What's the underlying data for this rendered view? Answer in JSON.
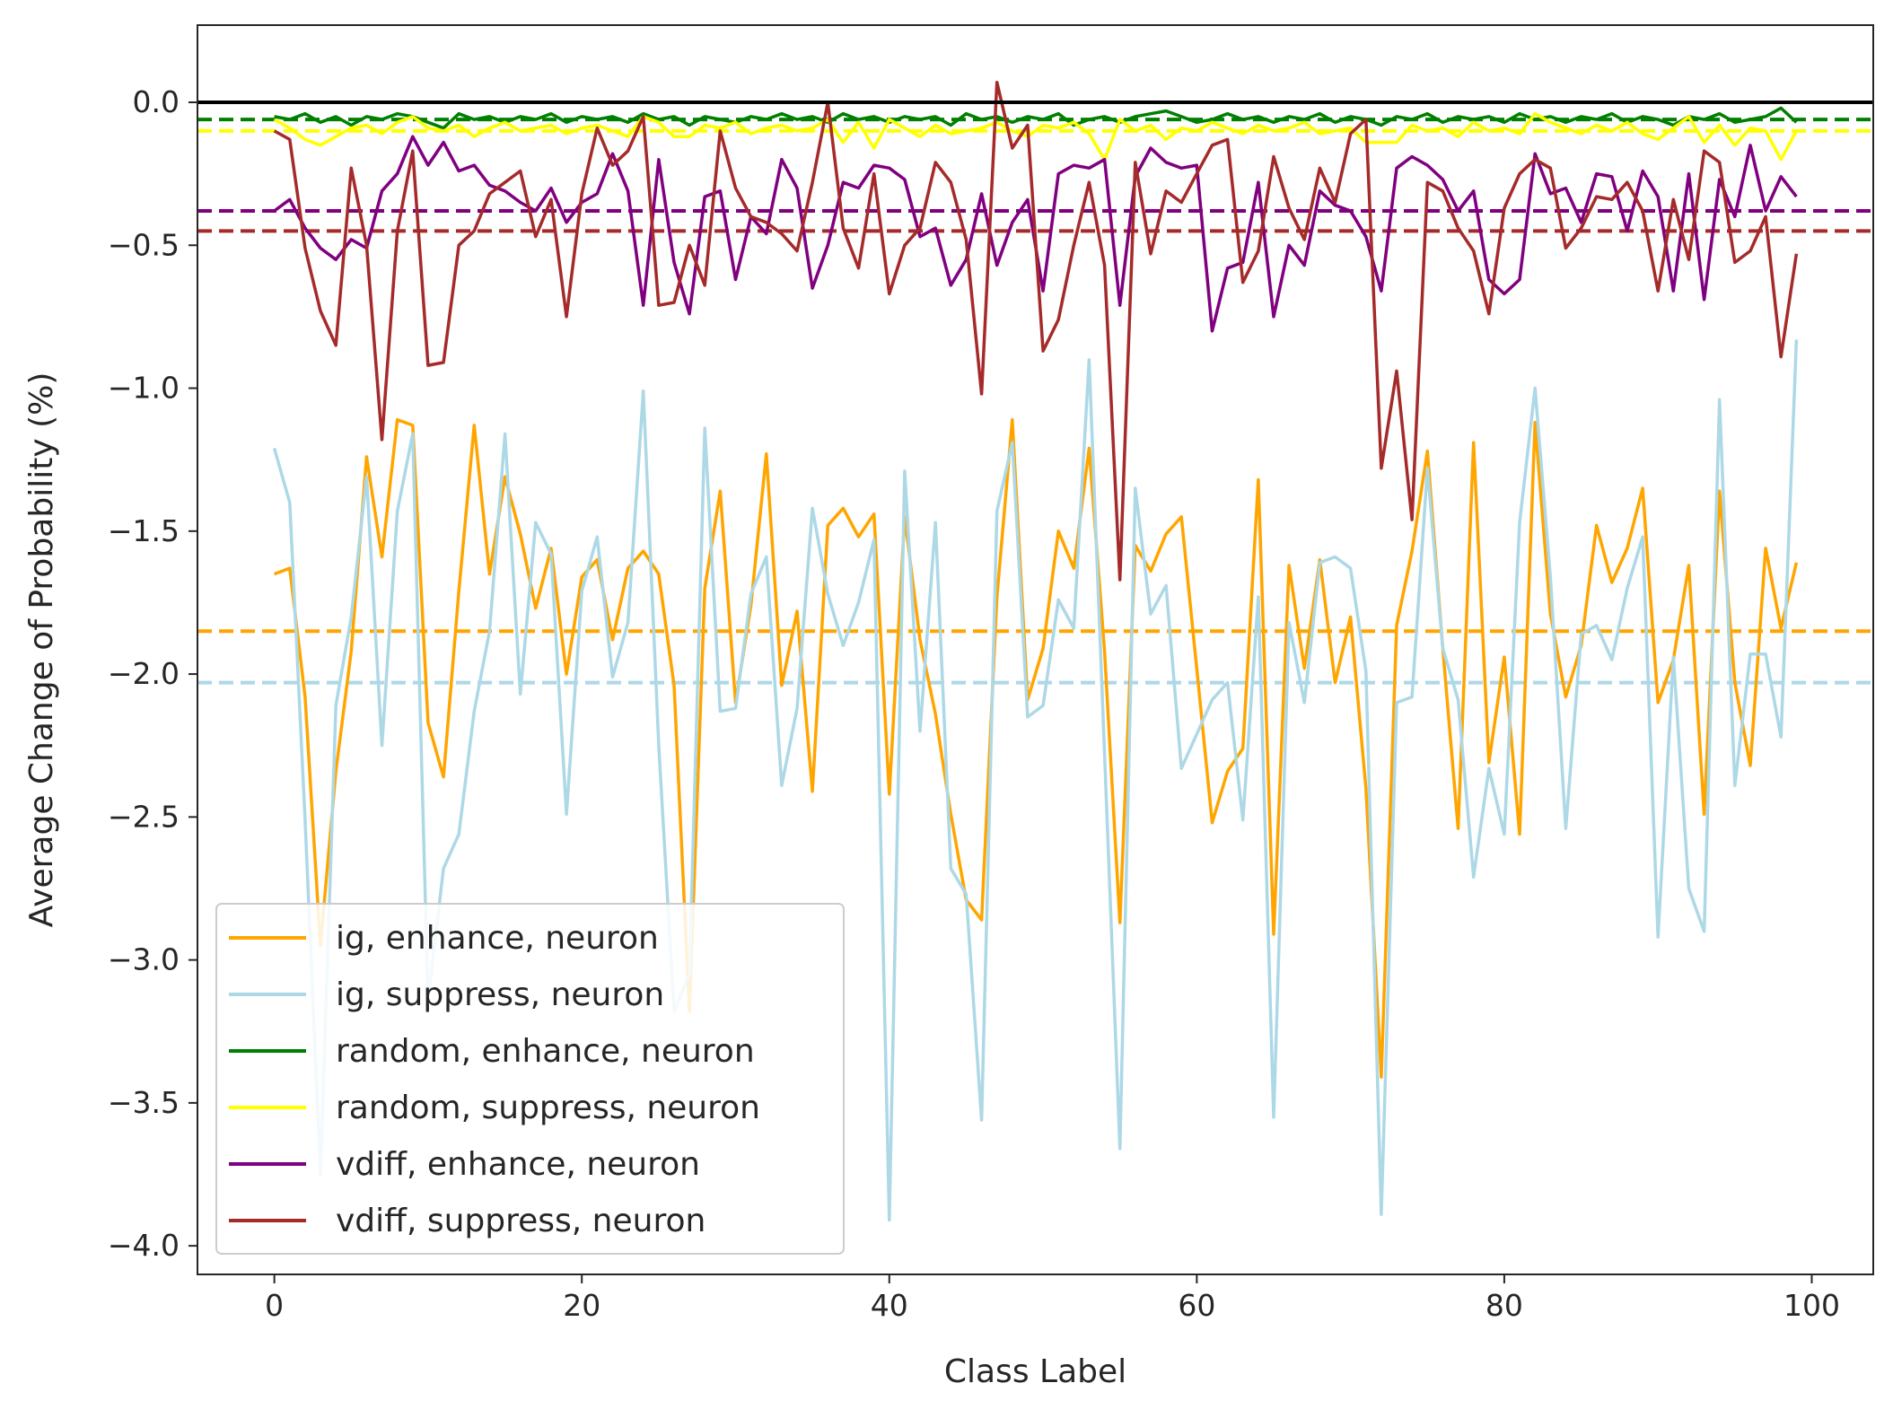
{
  "chart_data": {
    "type": "line",
    "title": "",
    "xlabel": "Class Label",
    "ylabel": "Average Change of Probability (%)",
    "xlim": [
      -5,
      104
    ],
    "ylim": [
      -4.1,
      0.27
    ],
    "xticks": [
      0,
      20,
      40,
      60,
      80,
      100
    ],
    "xtick_labels": [
      "0",
      "20",
      "40",
      "60",
      "80",
      "100"
    ],
    "yticks": [
      0.0,
      -0.5,
      -1.0,
      -1.5,
      -2.0,
      -2.5,
      -3.0,
      -3.5,
      -4.0
    ],
    "ytick_labels": [
      "0.0",
      "−0.5",
      "−1.0",
      "−1.5",
      "−2.0",
      "−2.5",
      "−3.0",
      "−3.5",
      "−4.0"
    ],
    "grid": false,
    "legend_position": "lower-left",
    "reference_line": {
      "y": 0.0,
      "color": "#000000"
    },
    "series": [
      {
        "name": "ig, enhance, neuron",
        "color": "#ffa500",
        "mean": -1.85,
        "values": [
          -1.65,
          -1.63,
          -2.08,
          -2.95,
          -2.34,
          -1.92,
          -1.24,
          -1.59,
          -1.11,
          -1.13,
          -2.17,
          -2.36,
          -1.71,
          -1.13,
          -1.65,
          -1.31,
          -1.51,
          -1.77,
          -1.56,
          -2.0,
          -1.66,
          -1.6,
          -1.88,
          -1.63,
          -1.57,
          -1.65,
          -2.04,
          -3.18,
          -1.7,
          -1.36,
          -2.1,
          -1.76,
          -1.23,
          -2.04,
          -1.78,
          -2.41,
          -1.48,
          -1.42,
          -1.52,
          -1.44,
          -2.42,
          -1.45,
          -1.88,
          -2.14,
          -2.49,
          -2.79,
          -2.86,
          -1.73,
          -1.11,
          -2.09,
          -1.91,
          -1.5,
          -1.63,
          -1.21,
          -1.92,
          -2.87,
          -1.55,
          -1.64,
          -1.51,
          -1.45,
          -1.98,
          -2.52,
          -2.34,
          -2.26,
          -1.32,
          -2.91,
          -1.62,
          -1.98,
          -1.6,
          -2.03,
          -1.8,
          -2.4,
          -3.41,
          -1.83,
          -1.57,
          -1.22,
          -1.91,
          -2.54,
          -1.19,
          -2.31,
          -1.94,
          -2.56,
          -1.12,
          -1.79,
          -2.08,
          -1.9,
          -1.48,
          -1.68,
          -1.56,
          -1.35,
          -2.1,
          -1.95,
          -1.62,
          -2.49,
          -1.36,
          -2.03,
          -2.32,
          -1.56,
          -1.84,
          -1.61
        ]
      },
      {
        "name": "ig, suppress, neuron",
        "color": "#add8e6",
        "mean": -2.03,
        "values": [
          -1.21,
          -1.4,
          -2.51,
          -3.75,
          -2.11,
          -1.8,
          -1.31,
          -2.25,
          -1.43,
          -1.16,
          -3.14,
          -2.68,
          -2.56,
          -2.13,
          -1.85,
          -1.16,
          -2.07,
          -1.47,
          -1.58,
          -2.49,
          -1.71,
          -1.52,
          -2.01,
          -1.82,
          -1.01,
          -2.25,
          -3.18,
          -3.05,
          -1.14,
          -2.13,
          -2.12,
          -1.72,
          -1.59,
          -2.39,
          -2.12,
          -1.42,
          -1.72,
          -1.9,
          -1.75,
          -1.53,
          -3.91,
          -1.29,
          -2.2,
          -1.47,
          -2.68,
          -2.77,
          -3.56,
          -1.43,
          -1.19,
          -2.15,
          -2.11,
          -1.74,
          -1.84,
          -0.9,
          -2.28,
          -3.66,
          -1.35,
          -1.79,
          -1.69,
          -2.33,
          -2.21,
          -2.09,
          -2.03,
          -2.51,
          -1.73,
          -3.55,
          -1.82,
          -2.1,
          -1.61,
          -1.59,
          -1.63,
          -1.99,
          -3.89,
          -2.1,
          -2.08,
          -1.28,
          -1.91,
          -2.09,
          -2.71,
          -2.33,
          -2.56,
          -1.47,
          -1.0,
          -1.66,
          -2.54,
          -1.86,
          -1.83,
          -1.95,
          -1.7,
          -1.52,
          -2.92,
          -1.94,
          -2.75,
          -2.9,
          -1.04,
          -2.39,
          -1.93,
          -1.93,
          -2.22,
          -0.83
        ]
      },
      {
        "name": "random, enhance, neuron",
        "color": "#008000",
        "mean": -0.06,
        "values": [
          -0.05,
          -0.06,
          -0.04,
          -0.07,
          -0.05,
          -0.08,
          -0.05,
          -0.06,
          -0.04,
          -0.05,
          -0.07,
          -0.09,
          -0.04,
          -0.06,
          -0.05,
          -0.07,
          -0.05,
          -0.06,
          -0.04,
          -0.07,
          -0.05,
          -0.06,
          -0.05,
          -0.07,
          -0.04,
          -0.06,
          -0.05,
          -0.08,
          -0.05,
          -0.06,
          -0.07,
          -0.05,
          -0.06,
          -0.04,
          -0.06,
          -0.05,
          -0.07,
          -0.04,
          -0.06,
          -0.05,
          -0.07,
          -0.05,
          -0.06,
          -0.05,
          -0.08,
          -0.04,
          -0.06,
          -0.05,
          -0.07,
          -0.05,
          -0.06,
          -0.04,
          -0.08,
          -0.06,
          -0.05,
          -0.07,
          -0.05,
          -0.04,
          -0.03,
          -0.05,
          -0.07,
          -0.06,
          -0.04,
          -0.06,
          -0.05,
          -0.07,
          -0.05,
          -0.06,
          -0.04,
          -0.07,
          -0.05,
          -0.06,
          -0.08,
          -0.05,
          -0.06,
          -0.04,
          -0.07,
          -0.05,
          -0.06,
          -0.05,
          -0.07,
          -0.04,
          -0.06,
          -0.05,
          -0.07,
          -0.05,
          -0.06,
          -0.04,
          -0.07,
          -0.05,
          -0.06,
          -0.08,
          -0.05,
          -0.06,
          -0.04,
          -0.07,
          -0.06,
          -0.05,
          -0.02,
          -0.07
        ]
      },
      {
        "name": "random, suppress, neuron",
        "color": "#ffff00",
        "mean": -0.1,
        "values": [
          -0.06,
          -0.09,
          -0.13,
          -0.15,
          -0.12,
          -0.09,
          -0.08,
          -0.11,
          -0.07,
          -0.05,
          -0.09,
          -0.1,
          -0.08,
          -0.12,
          -0.09,
          -0.07,
          -0.1,
          -0.09,
          -0.08,
          -0.11,
          -0.09,
          -0.08,
          -0.1,
          -0.12,
          -0.05,
          -0.07,
          -0.12,
          -0.12,
          -0.08,
          -0.09,
          -0.07,
          -0.11,
          -0.09,
          -0.08,
          -0.1,
          -0.09,
          -0.06,
          -0.14,
          -0.07,
          -0.16,
          -0.06,
          -0.09,
          -0.12,
          -0.08,
          -0.11,
          -0.1,
          -0.09,
          -0.07,
          -0.1,
          -0.12,
          -0.08,
          -0.09,
          -0.07,
          -0.11,
          -0.2,
          -0.06,
          -0.1,
          -0.08,
          -0.13,
          -0.09,
          -0.1,
          -0.07,
          -0.09,
          -0.11,
          -0.08,
          -0.1,
          -0.09,
          -0.07,
          -0.11,
          -0.1,
          -0.09,
          -0.14,
          -0.14,
          -0.14,
          -0.08,
          -0.1,
          -0.09,
          -0.12,
          -0.07,
          -0.1,
          -0.09,
          -0.11,
          -0.04,
          -0.07,
          -0.09,
          -0.11,
          -0.08,
          -0.1,
          -0.07,
          -0.11,
          -0.13,
          -0.09,
          -0.05,
          -0.14,
          -0.08,
          -0.15,
          -0.09,
          -0.1,
          -0.2,
          -0.1
        ]
      },
      {
        "name": "vdiff, enhance, neuron",
        "color": "#800080",
        "mean": -0.38,
        "values": [
          -0.38,
          -0.34,
          -0.44,
          -0.51,
          -0.55,
          -0.48,
          -0.51,
          -0.31,
          -0.25,
          -0.12,
          -0.22,
          -0.14,
          -0.24,
          -0.22,
          -0.29,
          -0.31,
          -0.35,
          -0.38,
          -0.3,
          -0.42,
          -0.35,
          -0.32,
          -0.18,
          -0.31,
          -0.71,
          -0.2,
          -0.56,
          -0.74,
          -0.33,
          -0.31,
          -0.62,
          -0.4,
          -0.46,
          -0.2,
          -0.3,
          -0.65,
          -0.5,
          -0.28,
          -0.3,
          -0.22,
          -0.23,
          -0.27,
          -0.47,
          -0.44,
          -0.64,
          -0.55,
          -0.32,
          -0.57,
          -0.42,
          -0.34,
          -0.66,
          -0.25,
          -0.22,
          -0.23,
          -0.2,
          -0.71,
          -0.26,
          -0.16,
          -0.21,
          -0.23,
          -0.22,
          -0.8,
          -0.58,
          -0.56,
          -0.28,
          -0.75,
          -0.5,
          -0.57,
          -0.31,
          -0.36,
          -0.38,
          -0.47,
          -0.66,
          -0.23,
          -0.19,
          -0.22,
          -0.27,
          -0.38,
          -0.31,
          -0.62,
          -0.67,
          -0.62,
          -0.18,
          -0.32,
          -0.3,
          -0.42,
          -0.25,
          -0.26,
          -0.45,
          -0.24,
          -0.33,
          -0.66,
          -0.25,
          -0.69,
          -0.27,
          -0.4,
          -0.15,
          -0.38,
          -0.26,
          -0.33
        ]
      },
      {
        "name": "vdiff, suppress, neuron",
        "color": "#a52a2a",
        "mean": -0.45,
        "values": [
          -0.1,
          -0.13,
          -0.51,
          -0.73,
          -0.85,
          -0.23,
          -0.5,
          -1.18,
          -0.45,
          -0.17,
          -0.92,
          -0.91,
          -0.5,
          -0.45,
          -0.32,
          -0.28,
          -0.24,
          -0.47,
          -0.34,
          -0.75,
          -0.32,
          -0.09,
          -0.22,
          -0.17,
          -0.05,
          -0.71,
          -0.7,
          -0.5,
          -0.64,
          -0.1,
          -0.3,
          -0.4,
          -0.42,
          -0.46,
          -0.52,
          -0.28,
          0.0,
          -0.44,
          -0.58,
          -0.25,
          -0.67,
          -0.5,
          -0.44,
          -0.21,
          -0.28,
          -0.48,
          -1.02,
          0.07,
          -0.16,
          -0.08,
          -0.87,
          -0.76,
          -0.5,
          -0.28,
          -0.57,
          -1.67,
          -0.21,
          -0.53,
          -0.31,
          -0.35,
          -0.25,
          -0.15,
          -0.13,
          -0.63,
          -0.52,
          -0.19,
          -0.37,
          -0.48,
          -0.23,
          -0.35,
          -0.11,
          -0.06,
          -1.28,
          -0.94,
          -1.46,
          -0.28,
          -0.31,
          -0.44,
          -0.52,
          -0.74,
          -0.37,
          -0.25,
          -0.2,
          -0.23,
          -0.51,
          -0.44,
          -0.33,
          -0.34,
          -0.28,
          -0.38,
          -0.66,
          -0.34,
          -0.55,
          -0.17,
          -0.21,
          -0.56,
          -0.52,
          -0.4,
          -0.89,
          -0.53
        ]
      }
    ]
  }
}
